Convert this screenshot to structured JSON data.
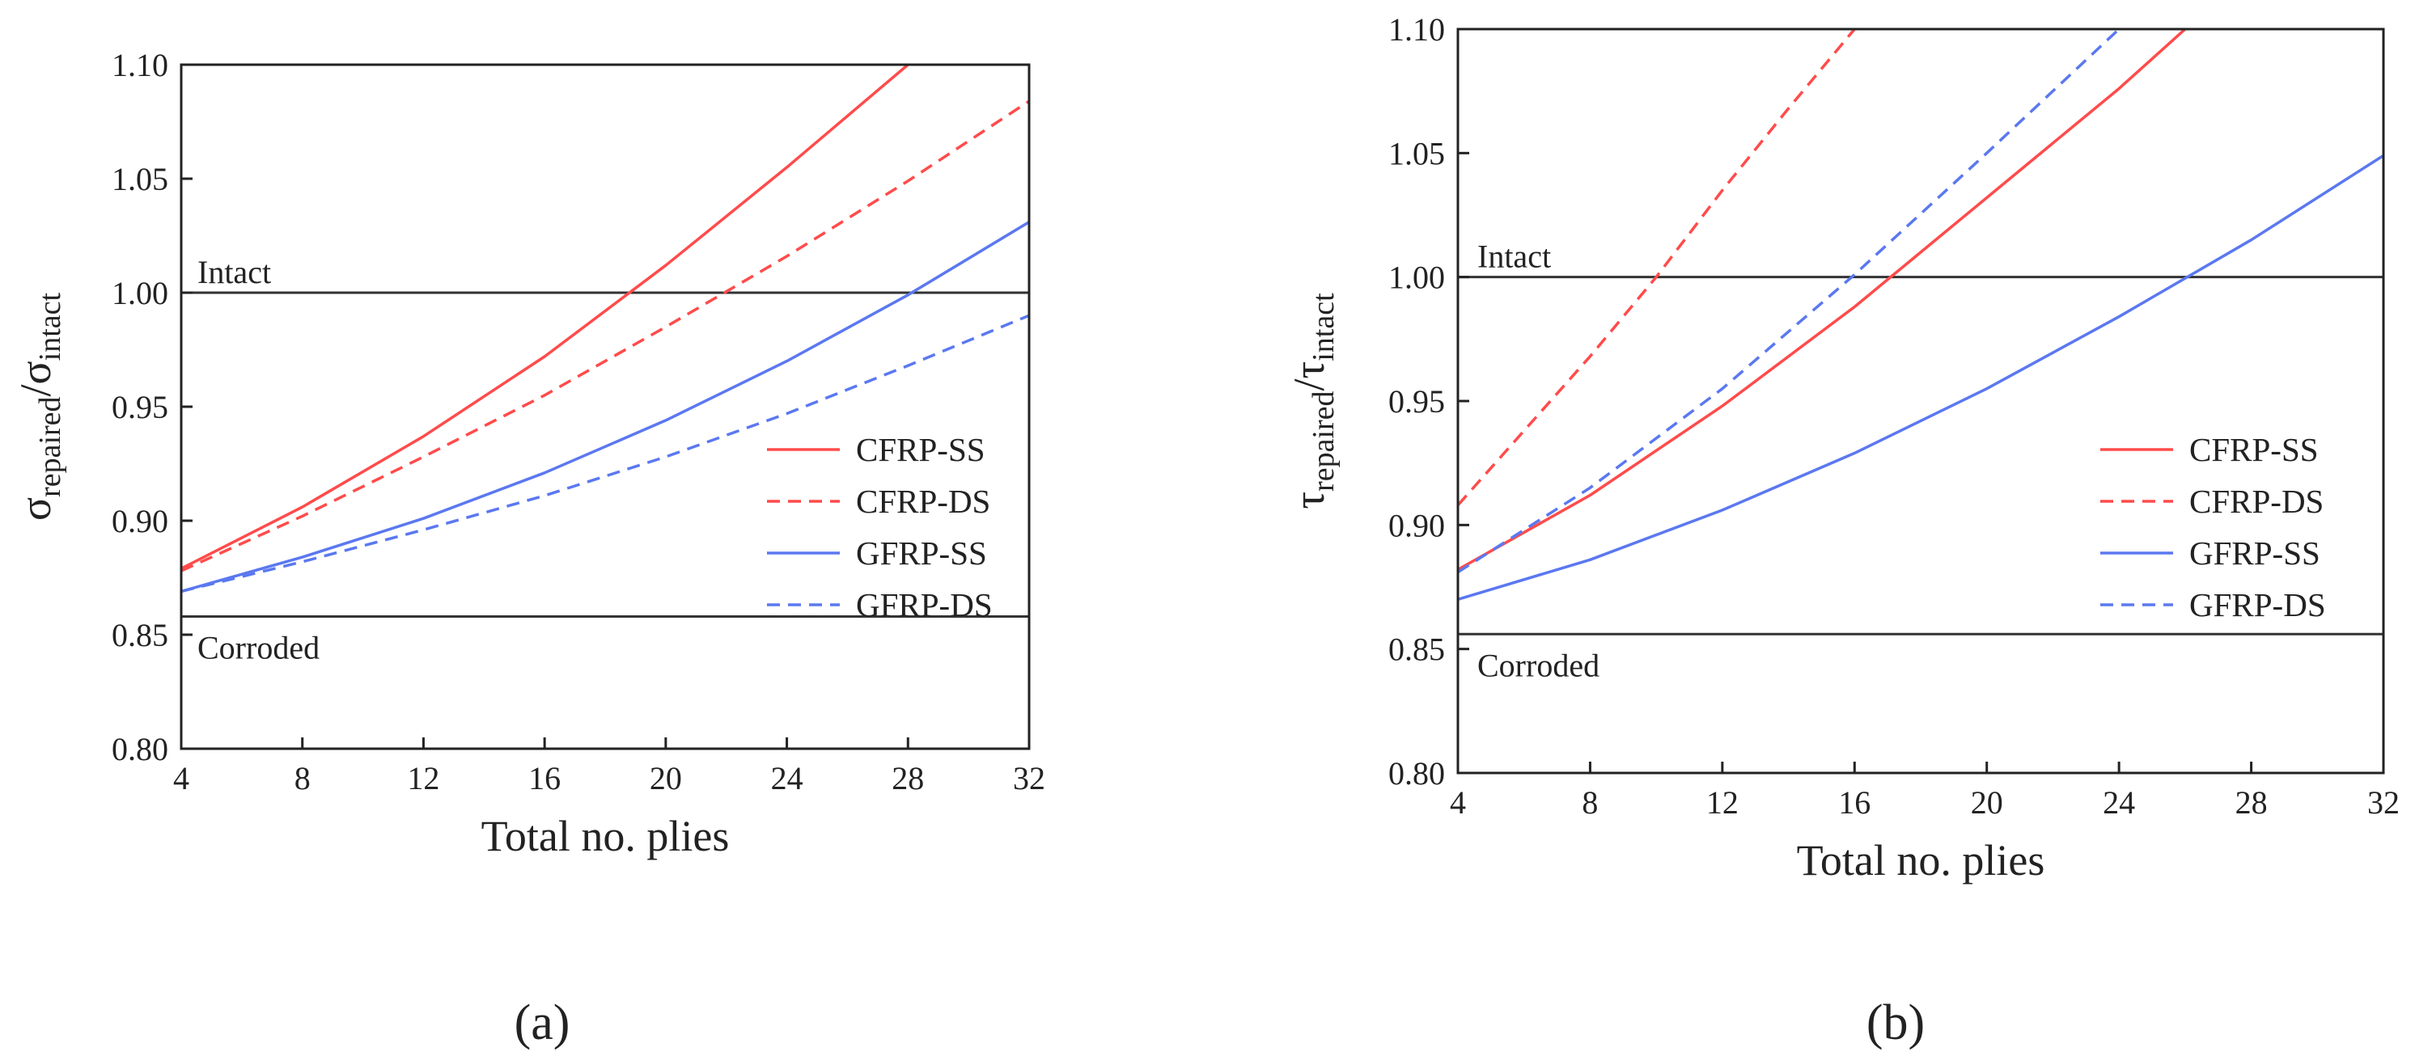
{
  "figure": {
    "panel_a_label": "(a)",
    "panel_b_label": "(b)"
  },
  "chart_data": [
    {
      "type": "line",
      "panel": "(a)",
      "title": "",
      "xlabel": "Total no. plies",
      "ylabel_main": "σ",
      "ylabel_sub1": "repaired",
      "ylabel_mid": "/σ",
      "ylabel_sub2": "intact",
      "xlim": [
        4,
        32
      ],
      "ylim": [
        0.8,
        1.1
      ],
      "xticks": [
        4,
        8,
        12,
        16,
        20,
        24,
        28,
        32
      ],
      "yticks": [
        0.8,
        0.85,
        0.9,
        0.95,
        1.0,
        1.05,
        1.1
      ],
      "ytick_labels": [
        "0.80",
        "0.85",
        "0.90",
        "0.95",
        "1.00",
        "1.05",
        "1.10"
      ],
      "legend_position": "center-right",
      "reference_lines": [
        {
          "label": "Intact",
          "y": 1.0
        },
        {
          "label": "Corroded",
          "y": 0.858
        }
      ],
      "series": [
        {
          "name": "CFRP-SS",
          "color": "#ff4b4b",
          "dash": "solid",
          "x": [
            4,
            8,
            12,
            16,
            20,
            24,
            28
          ],
          "y": [
            0.879,
            0.906,
            0.937,
            0.972,
            1.012,
            1.055,
            1.1
          ]
        },
        {
          "name": "CFRP-DS",
          "color": "#ff4b4b",
          "dash": "dashed",
          "x": [
            4,
            8,
            12,
            16,
            20,
            24,
            28,
            32
          ],
          "y": [
            0.878,
            0.902,
            0.928,
            0.955,
            0.985,
            1.016,
            1.049,
            1.084
          ]
        },
        {
          "name": "GFRP-SS",
          "color": "#5b78f0",
          "dash": "solid",
          "x": [
            4,
            8,
            12,
            16,
            20,
            24,
            28,
            32
          ],
          "y": [
            0.869,
            0.884,
            0.901,
            0.921,
            0.944,
            0.97,
            0.999,
            1.031
          ]
        },
        {
          "name": "GFRP-DS",
          "color": "#5b78f0",
          "dash": "dashed",
          "x": [
            4,
            8,
            12,
            16,
            20,
            24,
            28,
            32
          ],
          "y": [
            0.869,
            0.882,
            0.896,
            0.911,
            0.928,
            0.947,
            0.968,
            0.99
          ]
        }
      ]
    },
    {
      "type": "line",
      "panel": "(b)",
      "title": "",
      "xlabel": "Total no. plies",
      "ylabel_main": "τ",
      "ylabel_sub1": "repaired",
      "ylabel_mid": "/τ",
      "ylabel_sub2": "intact",
      "xlim": [
        4,
        32
      ],
      "ylim": [
        0.8,
        1.1
      ],
      "xticks": [
        4,
        8,
        12,
        16,
        20,
        24,
        28,
        32
      ],
      "yticks": [
        0.8,
        0.85,
        0.9,
        0.95,
        1.0,
        1.05,
        1.1
      ],
      "ytick_labels": [
        "0.80",
        "0.85",
        "0.90",
        "0.95",
        "1.00",
        "1.05",
        "1.10"
      ],
      "legend_position": "center-right",
      "reference_lines": [
        {
          "label": "Intact",
          "y": 1.0
        },
        {
          "label": "Corroded",
          "y": 0.856
        }
      ],
      "series": [
        {
          "name": "CFRP-SS",
          "color": "#ff4b4b",
          "dash": "solid",
          "x": [
            4,
            8,
            12,
            16,
            20,
            24,
            26
          ],
          "y": [
            0.882,
            0.912,
            0.948,
            0.988,
            1.032,
            1.076,
            1.1
          ]
        },
        {
          "name": "CFRP-DS",
          "color": "#ff4b4b",
          "dash": "dashed",
          "x": [
            4,
            8,
            10,
            12,
            14,
            16
          ],
          "y": [
            0.908,
            0.968,
            1.0,
            1.035,
            1.068,
            1.1
          ]
        },
        {
          "name": "GFRP-SS",
          "color": "#5b78f0",
          "dash": "solid",
          "x": [
            4,
            8,
            12,
            16,
            20,
            24,
            28,
            32
          ],
          "y": [
            0.87,
            0.886,
            0.906,
            0.929,
            0.955,
            0.984,
            1.015,
            1.049
          ]
        },
        {
          "name": "GFRP-DS",
          "color": "#5b78f0",
          "dash": "dashed",
          "x": [
            4,
            8,
            12,
            16,
            20,
            24
          ],
          "y": [
            0.881,
            0.915,
            0.955,
            1.001,
            1.05,
            1.1
          ]
        }
      ]
    }
  ]
}
